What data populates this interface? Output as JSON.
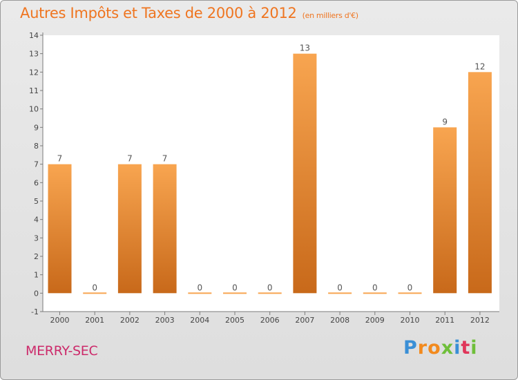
{
  "title": "Autres Impôts et Taxes de 2000 à 2012",
  "subtitle": "(en milliers d'€)",
  "commune": "MERRY-SEC",
  "logo": {
    "text": "Proxiti",
    "letters": [
      "P",
      "r",
      "o",
      "x",
      "i",
      "t",
      "i"
    ],
    "colors": [
      "#3a8fd6",
      "#f28a1e",
      "#f28a1e",
      "#6fbf3a",
      "#3a8fd6",
      "#e0365a",
      "#6fbf3a"
    ]
  },
  "colors": {
    "bar_light": "#f8a550",
    "bar_dark": "#c8691a",
    "title": "#ef7520",
    "commune": "#cc2a6a"
  },
  "chart_data": {
    "type": "bar",
    "title": "Autres Impôts et Taxes de 2000 à 2012",
    "subtitle": "(en milliers d'€)",
    "categories": [
      "2000",
      "2001",
      "2002",
      "2003",
      "2004",
      "2005",
      "2006",
      "2007",
      "2008",
      "2009",
      "2010",
      "2011",
      "2012"
    ],
    "values": [
      7,
      0,
      7,
      7,
      0,
      0,
      0,
      13,
      0,
      0,
      0,
      9,
      12
    ],
    "data_labels": [
      "7",
      "0",
      "7",
      "7",
      "0",
      "0",
      "0",
      "13",
      "0",
      "0",
      "0",
      "9",
      "12"
    ],
    "yticks": [
      "-1",
      "0",
      "1",
      "2",
      "3",
      "4",
      "5",
      "6",
      "7",
      "8",
      "9",
      "10",
      "11",
      "12",
      "13",
      "14"
    ],
    "ylim": [
      -1,
      14
    ],
    "grid": false,
    "legend": "none"
  }
}
